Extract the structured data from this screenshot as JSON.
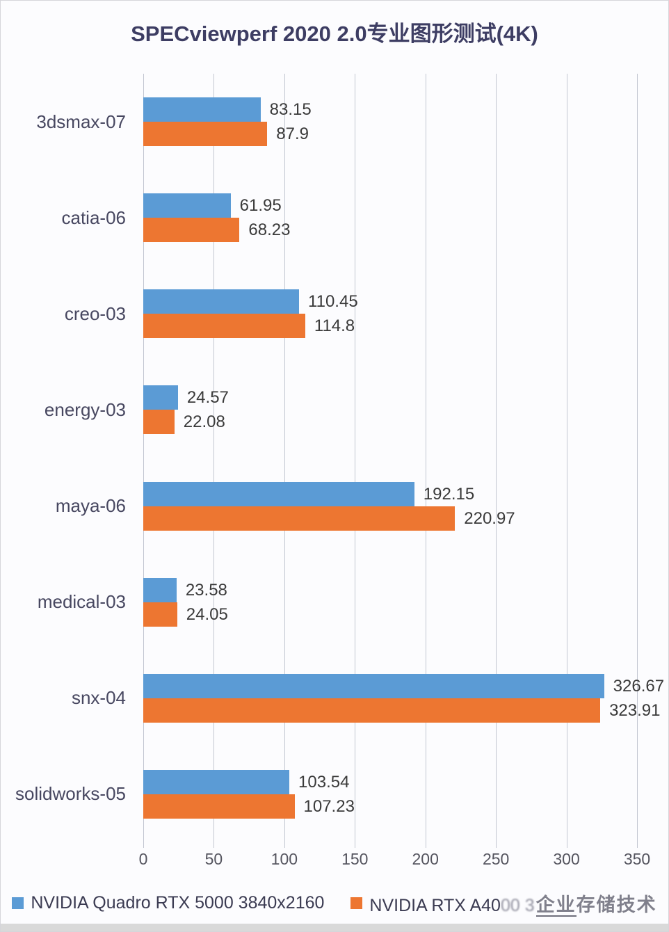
{
  "title": "SPECviewperf 2020 2.0专业图形测试(4K)",
  "chart_data": {
    "type": "bar",
    "orientation": "horizontal",
    "title": "SPECviewperf 2020 2.0专业图形测试(4K)",
    "categories": [
      "3dsmax-07",
      "catia-06",
      "creo-03",
      "energy-03",
      "maya-06",
      "medical-03",
      "snx-04",
      "solidworks-05"
    ],
    "series": [
      {
        "name": "NVIDIA Quadro RTX 5000 3840x2160",
        "color": "#5B9BD5",
        "values": [
          83.15,
          61.95,
          110.45,
          24.57,
          192.15,
          23.58,
          326.67,
          103.54
        ]
      },
      {
        "name": "NVIDIA RTX A4000 3840x2160",
        "note": "legend label partially obscured by watermark",
        "color": "#ED7631",
        "values": [
          87.9,
          68.23,
          114.8,
          22.08,
          220.97,
          24.05,
          323.91,
          107.23
        ]
      }
    ],
    "xlim": [
      0,
      350
    ],
    "x_ticks": [
      0,
      50,
      100,
      150,
      200,
      250,
      300,
      350
    ],
    "grid": "vertical-gridlines",
    "legend_position": "bottom",
    "value_labels": "outside-end"
  },
  "legend": {
    "item1_label": "NVIDIA Quadro RTX 5000 3840x2160",
    "item2_prefix": "NVIDIA RTX A40",
    "item2_obscured": "00 3"
  },
  "watermark": {
    "underlined": "企业",
    "rest": "存储技术",
    "full_text": "企业存储技术"
  },
  "colors": {
    "series1": "#5B9BD5",
    "series2": "#ED7631",
    "gridline": "#c2c6d1",
    "title_text": "#3d3d63",
    "bottom_strip": "#d9d9d9"
  }
}
